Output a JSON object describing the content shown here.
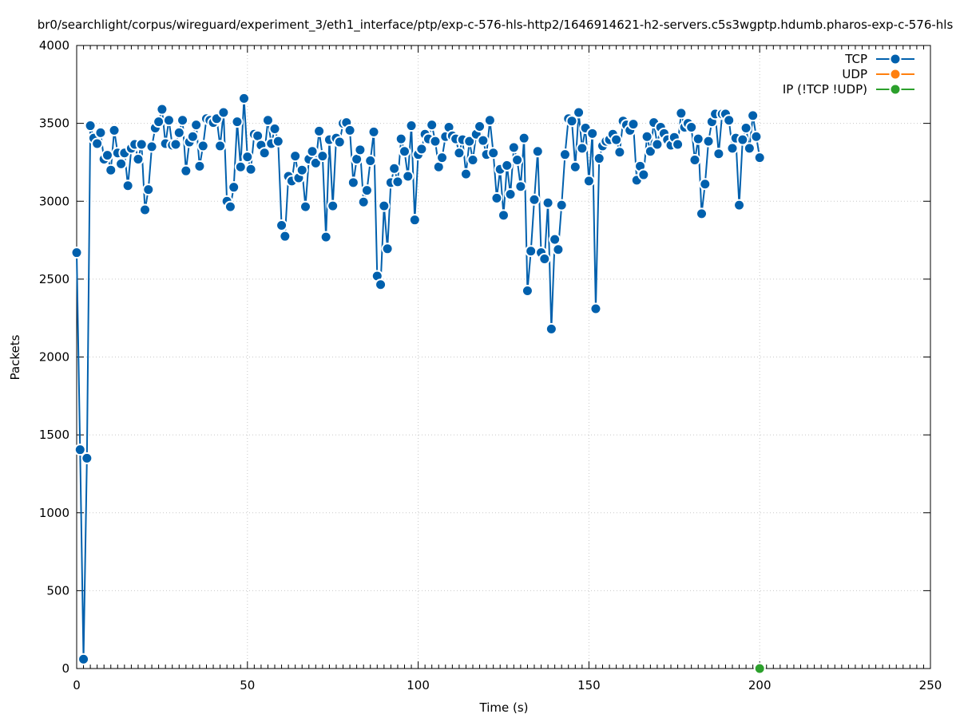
{
  "chart_data": {
    "type": "line",
    "title": "br0/searchlight/corpus/wireguard/experiment_3/eth1_interface/ptp/exp-c-576-hls-http2/1646914621-h2-servers.c5s3wgptp.hdumb.pharos-exp-c-576-hls",
    "xlabel": "Time (s)",
    "ylabel": "Packets",
    "xlim": [
      0,
      250
    ],
    "ylim": [
      0,
      4000
    ],
    "xticks": [
      0,
      50,
      100,
      150,
      200,
      250
    ],
    "yticks": [
      0,
      500,
      1000,
      1500,
      2000,
      2500,
      3000,
      3500,
      4000
    ],
    "x_minor_step": 2,
    "grid": true,
    "legend_position": "top-right",
    "series": [
      {
        "name": "TCP",
        "color": "#0060ad",
        "x": [
          0,
          1,
          2,
          3,
          4,
          5,
          6,
          7,
          8,
          9,
          10,
          11,
          12,
          13,
          14,
          15,
          16,
          17,
          18,
          19,
          20,
          21,
          22,
          23,
          24,
          25,
          26,
          27,
          28,
          29,
          30,
          31,
          32,
          33,
          34,
          35,
          36,
          37,
          38,
          39,
          40,
          41,
          42,
          43,
          44,
          45,
          46,
          47,
          48,
          49,
          50,
          51,
          52,
          53,
          54,
          55,
          56,
          57,
          58,
          59,
          60,
          61,
          62,
          63,
          64,
          65,
          66,
          67,
          68,
          69,
          70,
          71,
          72,
          73,
          74,
          75,
          76,
          77,
          78,
          79,
          80,
          81,
          82,
          83,
          84,
          85,
          86,
          87,
          88,
          89,
          90,
          91,
          92,
          93,
          94,
          95,
          96,
          97,
          98,
          99,
          100,
          101,
          102,
          103,
          104,
          105,
          106,
          107,
          108,
          109,
          110,
          111,
          112,
          113,
          114,
          115,
          116,
          117,
          118,
          119,
          120,
          121,
          122,
          123,
          124,
          125,
          126,
          127,
          128,
          129,
          130,
          131,
          132,
          133,
          134,
          135,
          136,
          137,
          138,
          139,
          140,
          141,
          142,
          143,
          144,
          145,
          146,
          147,
          148,
          149,
          150,
          151,
          152,
          153,
          154,
          155,
          156,
          157,
          158,
          159,
          160,
          161,
          162,
          163,
          164,
          165,
          166,
          167,
          168,
          169,
          170,
          171,
          172,
          173,
          174,
          175,
          176,
          177,
          178,
          179,
          180,
          181,
          182,
          183,
          184,
          185,
          186,
          187,
          188,
          189,
          190,
          191,
          192,
          193,
          194,
          195,
          196,
          197,
          198,
          199,
          200
        ],
        "y": [
          2670,
          1405,
          60,
          1350,
          3485,
          3405,
          3370,
          3440,
          3270,
          3295,
          3200,
          3455,
          3310,
          3240,
          3310,
          3100,
          3340,
          3365,
          3270,
          3365,
          2945,
          3075,
          3350,
          3470,
          3510,
          3590,
          3370,
          3520,
          3360,
          3365,
          3440,
          3520,
          3195,
          3380,
          3415,
          3490,
          3225,
          3355,
          3530,
          3520,
          3505,
          3530,
          3355,
          3570,
          3000,
          2965,
          3090,
          3510,
          3220,
          3660,
          3285,
          3205,
          3430,
          3420,
          3360,
          3310,
          3520,
          3370,
          3465,
          3385,
          2845,
          2775,
          3160,
          3130,
          3290,
          3150,
          3200,
          2965,
          3270,
          3320,
          3245,
          3450,
          3290,
          2770,
          3395,
          2970,
          3405,
          3380,
          3500,
          3505,
          3455,
          3120,
          3270,
          3330,
          2995,
          3070,
          3260,
          3445,
          2520,
          2465,
          2970,
          2695,
          3120,
          3210,
          3125,
          3400,
          3320,
          3160,
          3485,
          2880,
          3300,
          3335,
          3430,
          3400,
          3490,
          3385,
          3220,
          3280,
          3415,
          3475,
          3420,
          3400,
          3310,
          3395,
          3175,
          3385,
          3265,
          3430,
          3480,
          3390,
          3300,
          3520,
          3310,
          3020,
          3205,
          2910,
          3230,
          3045,
          3345,
          3265,
          3095,
          3405,
          2425,
          2680,
          3010,
          3320,
          2670,
          2630,
          2990,
          2180,
          2755,
          2690,
          2975,
          3300,
          3530,
          3515,
          3220,
          3570,
          3340,
          3470,
          3130,
          3435,
          2310,
          3275,
          3355,
          3385,
          3395,
          3430,
          3395,
          3315,
          3515,
          3490,
          3455,
          3495,
          3135,
          3225,
          3170,
          3415,
          3320,
          3505,
          3365,
          3475,
          3435,
          3395,
          3360,
          3410,
          3365,
          3565,
          3475,
          3500,
          3475,
          3265,
          3400,
          2920,
          3110,
          3385,
          3510,
          3560,
          3305,
          3560,
          3560,
          3520,
          3340,
          3405,
          2975,
          3395,
          3470,
          3340,
          3550,
          3415,
          3280
        ],
        "gaps": [
          [
            175,
            176
          ]
        ]
      },
      {
        "name": "UDP",
        "color": "#ff7f0e",
        "x": [],
        "y": []
      },
      {
        "name": "IP (!TCP  !UDP)",
        "color": "#2ca02c",
        "x": [
          200
        ],
        "y": [
          0
        ]
      }
    ]
  }
}
